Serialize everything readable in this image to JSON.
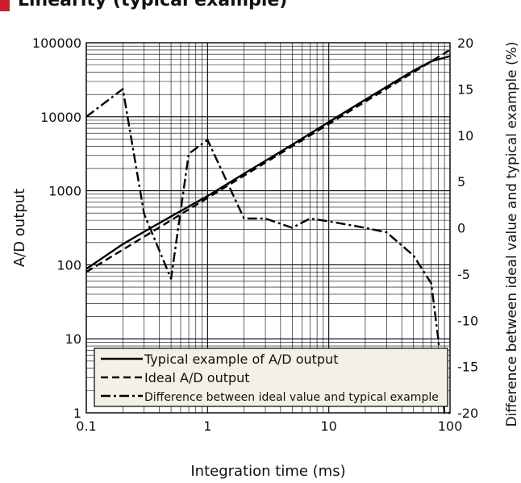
{
  "title": "Linearity (typical example)",
  "chart_data": {
    "type": "line",
    "title": "Linearity (typical example)",
    "xlabel": "Integration time (ms)",
    "ylabel": "A/D output",
    "y2label": "Difference between ideal value and typical example (%)",
    "x_scale": "log",
    "y_scale": "log",
    "xlim": [
      0.1,
      100
    ],
    "ylim": [
      1,
      100000
    ],
    "y2lim": [
      -20,
      20
    ],
    "x_ticks": [
      "0.1",
      "1",
      "10",
      "100"
    ],
    "y_ticks": [
      "1",
      "10",
      "100",
      "1000",
      "10000",
      "100000"
    ],
    "y2_ticks": [
      "-20",
      "-15",
      "-10",
      "-5",
      "0",
      "5",
      "10",
      "15",
      "20"
    ],
    "grid": true,
    "legend_position": "bottom-left",
    "legend": [
      "Typical example of A/D output",
      "Ideal A/D output",
      "Difference between ideal value and typical example"
    ],
    "series": [
      {
        "name": "Typical example of A/D output",
        "axis": "left",
        "style": "solid",
        "x": [
          0.1,
          0.2,
          0.3,
          0.5,
          1,
          2,
          5,
          10,
          20,
          50,
          70,
          100
        ],
        "y": [
          88,
          190,
          280,
          450,
          850,
          1700,
          4200,
          8500,
          17000,
          42000,
          56000,
          66000
        ]
      },
      {
        "name": "Ideal A/D output",
        "axis": "left",
        "style": "dashed",
        "x": [
          0.1,
          1,
          10,
          100
        ],
        "y": [
          80,
          800,
          8000,
          80000
        ]
      },
      {
        "name": "Difference between ideal value and typical example",
        "axis": "right",
        "style": "dash-dot",
        "x": [
          0.1,
          0.2,
          0.3,
          0.5,
          0.7,
          1,
          2,
          3,
          5,
          7,
          10,
          20,
          30,
          50,
          70,
          80,
          90,
          100
        ],
        "y": [
          12,
          15,
          1.5,
          -5.5,
          8,
          9.5,
          1,
          1,
          0,
          1,
          0.7,
          0,
          -0.5,
          -3,
          -6,
          -12,
          -20,
          -20
        ]
      }
    ]
  }
}
